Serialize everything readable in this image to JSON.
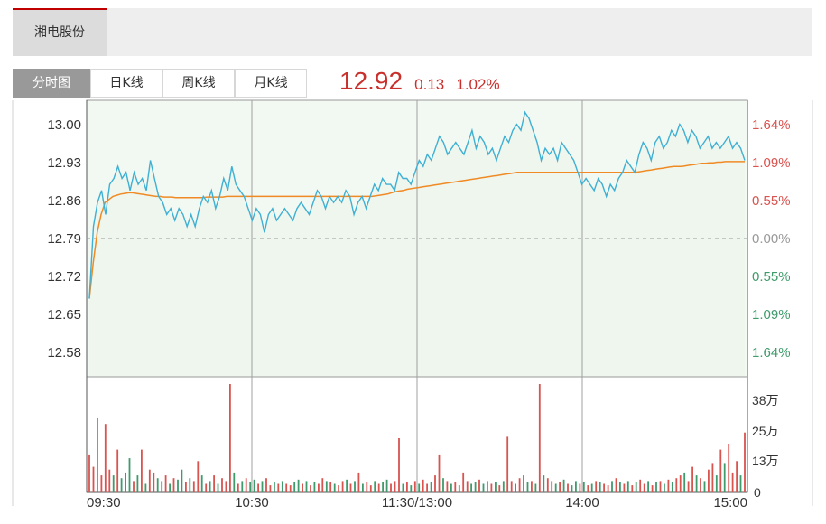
{
  "stock_tab": {
    "label": "湘电股份"
  },
  "chart_modes": [
    {
      "label": "分时图",
      "active": true
    },
    {
      "label": "日K线",
      "active": false
    },
    {
      "label": "周K线",
      "active": false
    },
    {
      "label": "月K线",
      "active": false
    }
  ],
  "quote": {
    "price": "12.92",
    "change": "0.13",
    "change_pct": "1.02%"
  },
  "colors": {
    "up": "#d9534f",
    "down": "#3f9b6b",
    "price_line": "#3fb0d3",
    "avg_line": "#f08a24",
    "area_fill": "#f2f8f2"
  },
  "chart_data": [
    {
      "type": "line",
      "x_ticks": [
        "09:30",
        "10:30",
        "11:30/13:00",
        "14:00",
        "15:00"
      ],
      "y_ticks": [
        "13.00",
        "12.93",
        "12.86",
        "12.79",
        "12.72",
        "12.65",
        "12.58"
      ],
      "pct_ticks": [
        "1.64%",
        "1.09%",
        "0.55%",
        "0.00%",
        "0.55%",
        "1.09%",
        "1.64%"
      ],
      "ylim": [
        12.56,
        13.02
      ],
      "prev_close": 12.79,
      "series": [
        {
          "values": [
            12.69,
            12.81,
            12.85,
            12.87,
            12.83,
            12.88,
            12.89,
            12.91,
            12.89,
            12.9,
            12.87,
            12.9,
            12.88,
            12.89,
            12.87,
            12.92,
            12.89,
            12.86,
            12.85,
            12.83,
            12.84,
            12.82,
            12.84,
            12.83,
            12.81,
            12.83,
            12.81,
            12.84,
            12.86,
            12.85,
            12.87,
            12.84,
            12.86,
            12.89,
            12.87,
            12.91,
            12.88,
            12.87,
            12.86,
            12.84,
            12.82,
            12.84,
            12.83,
            12.8,
            12.83,
            12.84,
            12.82,
            12.83,
            12.84,
            12.83,
            12.82,
            12.84,
            12.85,
            12.84,
            12.83,
            12.85,
            12.87,
            12.86,
            12.84,
            12.86,
            12.85,
            12.86,
            12.85,
            12.87,
            12.86,
            12.83,
            12.85,
            12.86,
            12.84,
            12.86,
            12.88,
            12.87,
            12.89,
            12.88,
            12.88,
            12.87,
            12.9,
            12.89,
            12.89,
            12.88,
            12.9,
            12.92,
            12.91,
            12.93,
            12.92,
            12.94,
            12.96,
            12.95,
            12.93,
            12.94,
            12.95,
            12.94,
            12.93,
            12.95,
            12.97,
            12.94,
            12.96,
            12.95,
            12.93,
            12.94,
            12.92,
            12.94,
            12.96,
            12.95,
            12.97,
            12.98,
            12.97,
            13.0,
            12.99,
            12.97,
            12.95,
            12.92,
            12.94,
            12.93,
            12.94,
            12.92,
            12.95,
            12.94,
            12.93,
            12.92,
            12.9,
            12.88,
            12.89,
            12.88,
            12.87,
            12.89,
            12.88,
            12.86,
            12.88,
            12.87,
            12.89,
            12.9,
            12.92,
            12.91,
            12.9,
            12.93,
            12.95,
            12.94,
            12.92,
            12.95,
            12.96,
            12.94,
            12.95,
            12.97,
            12.96,
            12.98,
            12.97,
            12.95,
            12.97,
            12.96,
            12.94,
            12.95,
            12.96,
            12.94,
            12.95,
            12.94,
            12.95,
            12.96,
            12.94,
            12.95,
            12.94,
            12.92
          ]
        },
        {
          "values": [
            12.69,
            12.75,
            12.8,
            12.83,
            12.85,
            12.855,
            12.86,
            12.862,
            12.864,
            12.865,
            12.866,
            12.866,
            12.865,
            12.864,
            12.863,
            12.862,
            12.861,
            12.86,
            12.86,
            12.859,
            12.859,
            12.859,
            12.858,
            12.858,
            12.858,
            12.858,
            12.858,
            12.858,
            12.858,
            12.858,
            12.859,
            12.859,
            12.859,
            12.859,
            12.859,
            12.86,
            12.86,
            12.86,
            12.86,
            12.86,
            12.86,
            12.86,
            12.86,
            12.86,
            12.86,
            12.86,
            12.86,
            12.86,
            12.86,
            12.86,
            12.86,
            12.86,
            12.86,
            12.86,
            12.86,
            12.86,
            12.86,
            12.86,
            12.86,
            12.86,
            12.86,
            12.86,
            12.86,
            12.86,
            12.86,
            12.86,
            12.86,
            12.86,
            12.86,
            12.86,
            12.86,
            12.86,
            12.86,
            12.861,
            12.862,
            12.863,
            12.864,
            12.866,
            12.868,
            12.869,
            12.87,
            12.872,
            12.873,
            12.874,
            12.875,
            12.876,
            12.877,
            12.878,
            12.879,
            12.88,
            12.881,
            12.882,
            12.883,
            12.884,
            12.885,
            12.886,
            12.887,
            12.888,
            12.889,
            12.89,
            12.891,
            12.892,
            12.893,
            12.894,
            12.895,
            12.896,
            12.897,
            12.898,
            12.899,
            12.9,
            12.9,
            12.9,
            12.9,
            12.9,
            12.9,
            12.9,
            12.9,
            12.9,
            12.9,
            12.9,
            12.9,
            12.9,
            12.9,
            12.9,
            12.9,
            12.9,
            12.9,
            12.9,
            12.9,
            12.9,
            12.9,
            12.9,
            12.9,
            12.9,
            12.9,
            12.9,
            12.9,
            12.9,
            12.9,
            12.9,
            12.901,
            12.902,
            12.903,
            12.904,
            12.905,
            12.906,
            12.907,
            12.908,
            12.909,
            12.91,
            12.91,
            12.91,
            12.911,
            12.912,
            12.913,
            12.914,
            12.915,
            12.915,
            12.916,
            12.916,
            12.917,
            12.917,
            12.918,
            12.918,
            12.918,
            12.918,
            12.918,
            12.918
          ]
        }
      ]
    },
    {
      "type": "bar",
      "y_ticks": [
        "38万",
        "25万",
        "13万",
        "0"
      ],
      "ylim": [
        0,
        380000
      ],
      "values": [
        130000,
        90000,
        260000,
        60000,
        240000,
        80000,
        60000,
        150000,
        50000,
        70000,
        120000,
        40000,
        60000,
        150000,
        30000,
        80000,
        70000,
        50000,
        40000,
        60000,
        30000,
        50000,
        45000,
        80000,
        35000,
        50000,
        40000,
        110000,
        60000,
        30000,
        40000,
        60000,
        30000,
        50000,
        40000,
        380000,
        70000,
        30000,
        40000,
        50000,
        35000,
        45000,
        30000,
        40000,
        50000,
        25000,
        35000,
        30000,
        40000,
        30000,
        25000,
        35000,
        45000,
        30000,
        40000,
        25000,
        35000,
        30000,
        50000,
        40000,
        35000,
        30000,
        25000,
        40000,
        45000,
        30000,
        40000,
        70000,
        30000,
        35000,
        25000,
        40000,
        30000,
        35000,
        45000,
        30000,
        40000,
        190000,
        30000,
        35000,
        25000,
        40000,
        30000,
        45000,
        30000,
        35000,
        60000,
        130000,
        50000,
        40000,
        30000,
        35000,
        25000,
        70000,
        40000,
        30000,
        35000,
        45000,
        30000,
        40000,
        30000,
        35000,
        25000,
        40000,
        195000,
        40000,
        30000,
        50000,
        60000,
        35000,
        40000,
        30000,
        380000,
        60000,
        50000,
        40000,
        30000,
        35000,
        45000,
        30000,
        25000,
        40000,
        30000,
        35000,
        25000,
        30000,
        40000,
        35000,
        30000,
        25000,
        40000,
        50000,
        35000,
        30000,
        40000,
        25000,
        35000,
        45000,
        30000,
        40000,
        25000,
        35000,
        40000,
        30000,
        45000,
        35000,
        50000,
        60000,
        70000,
        40000,
        90000,
        60000,
        50000,
        40000,
        80000,
        100000,
        60000,
        150000,
        100000,
        170000,
        70000,
        110000,
        60000,
        210000
      ],
      "directions": [
        "up",
        "up",
        "down",
        "up",
        "up",
        "up",
        "down",
        "up",
        "down",
        "up",
        "down",
        "up",
        "down",
        "up",
        "down",
        "up",
        "up",
        "down",
        "down",
        "up",
        "down",
        "up",
        "down",
        "down",
        "up",
        "down",
        "up",
        "up",
        "down",
        "up",
        "down",
        "up",
        "down",
        "up",
        "up",
        "up",
        "down",
        "up",
        "down",
        "up",
        "down",
        "down",
        "up",
        "down",
        "up",
        "up",
        "down",
        "up",
        "down",
        "up",
        "up",
        "down",
        "down",
        "up",
        "down",
        "up",
        "down",
        "up",
        "up",
        "down",
        "up",
        "down",
        "up",
        "up",
        "down",
        "up",
        "down",
        "up",
        "down",
        "up",
        "up",
        "down",
        "up",
        "down",
        "down",
        "up",
        "up",
        "up",
        "down",
        "up",
        "down",
        "up",
        "down",
        "up",
        "up",
        "down",
        "up",
        "up",
        "down",
        "up",
        "down",
        "up",
        "down",
        "up",
        "up",
        "down",
        "down",
        "up",
        "down",
        "up",
        "up",
        "down",
        "up",
        "down",
        "up",
        "up",
        "down",
        "up",
        "up",
        "down",
        "up",
        "down",
        "up",
        "down",
        "up",
        "up",
        "down",
        "up",
        "down",
        "up",
        "down",
        "down",
        "up",
        "down",
        "up",
        "down",
        "up",
        "down",
        "up",
        "up",
        "down",
        "up",
        "down",
        "up",
        "down",
        "up",
        "down",
        "up",
        "up",
        "down",
        "up",
        "down",
        "up",
        "down",
        "up",
        "down",
        "up",
        "up",
        "down",
        "up",
        "up",
        "down",
        "up",
        "down",
        "up",
        "up",
        "down",
        "up",
        "down",
        "up",
        "up",
        "up",
        "down",
        "up",
        "down",
        "up"
      ]
    }
  ]
}
